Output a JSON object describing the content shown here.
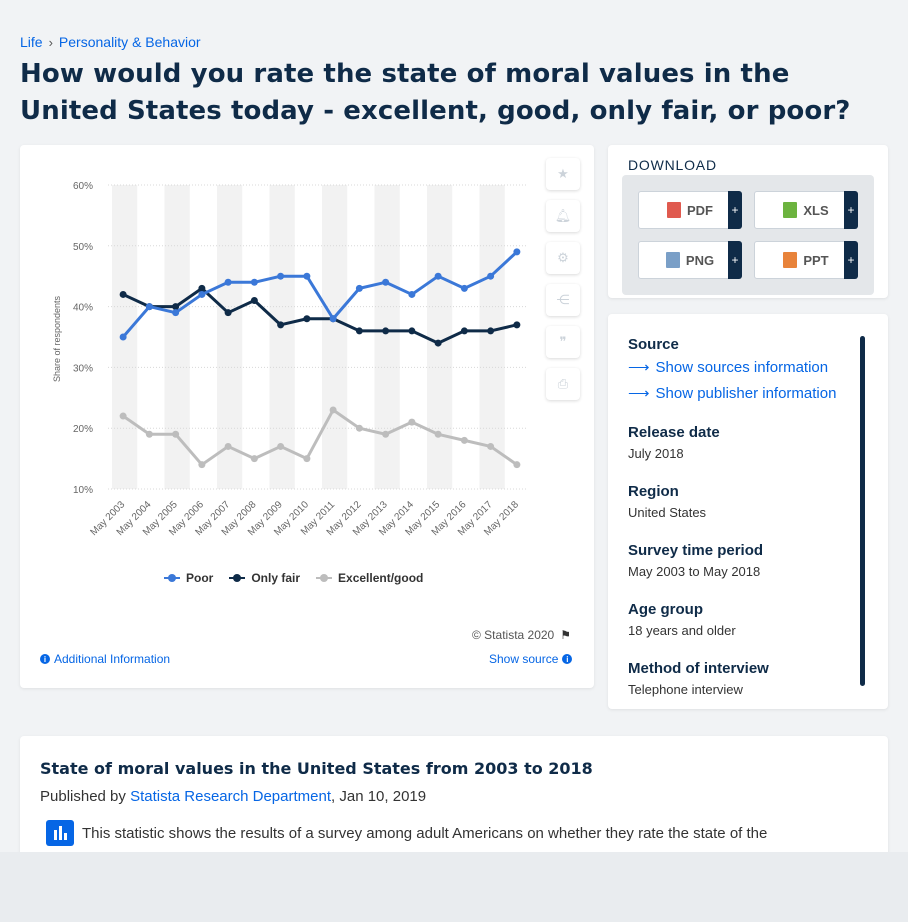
{
  "breadcrumb": {
    "item1": "Life",
    "item2": "Personality & Behavior"
  },
  "headline": "How would you rate the state of moral values in the United States today - excellent, good, only fair, or poor?",
  "chart_data": {
    "type": "line",
    "title": "",
    "xlabel": "",
    "ylabel": "Share of respondents",
    "ylim": [
      10,
      60
    ],
    "yticks": [
      "10%",
      "20%",
      "30%",
      "40%",
      "50%",
      "60%"
    ],
    "categories": [
      "May 2003",
      "May 2004",
      "May 2005",
      "May 2006",
      "May 2007",
      "May 2008",
      "May 2009",
      "May 2010",
      "May 2011",
      "May 2012",
      "May 2013",
      "May 2014",
      "May 2015",
      "May 2016",
      "May 2017",
      "May 2018"
    ],
    "series": [
      {
        "name": "Poor",
        "color": "#3b78d8",
        "values": [
          35,
          40,
          39,
          42,
          44,
          44,
          45,
          45,
          38,
          43,
          44,
          42,
          45,
          43,
          45,
          49
        ]
      },
      {
        "name": "Only fair",
        "color": "#0f2b48",
        "values": [
          42,
          40,
          40,
          43,
          39,
          41,
          37,
          38,
          38,
          36,
          36,
          36,
          34,
          36,
          36,
          37
        ]
      },
      {
        "name": "Excellent/good",
        "color": "#bdbdbd",
        "values": [
          22,
          19,
          19,
          14,
          17,
          15,
          17,
          15,
          23,
          20,
          19,
          21,
          19,
          18,
          17,
          14
        ]
      }
    ],
    "grid": true,
    "legend": "bottom"
  },
  "chart_footer": {
    "copyright": "© Statista 2020",
    "additional_info": "Additional Information",
    "show_source": "Show source"
  },
  "download": {
    "title": "DOWNLOAD",
    "buttons": [
      "PDF",
      "XLS",
      "PNG",
      "PPT"
    ],
    "plus": "+"
  },
  "info": {
    "source_label": "Source",
    "show_sources": "Show sources information",
    "show_publisher": "Show publisher information",
    "release_label": "Release date",
    "release_value": "July 2018",
    "region_label": "Region",
    "region_value": "United States",
    "survey_label": "Survey time period",
    "survey_value": "May 2003 to May 2018",
    "age_label": "Age group",
    "age_value": "18 years and older",
    "method_label": "Method of interview",
    "method_value": "Telephone interview"
  },
  "text_card": {
    "title": "State of moral values in the United States from 2003 to 2018",
    "published_by": "Published by",
    "publisher": "Statista Research Department",
    "date": ", Jan 10, 2019",
    "description": "This statistic shows the results of a survey among adult Americans on whether they rate the state of the"
  }
}
